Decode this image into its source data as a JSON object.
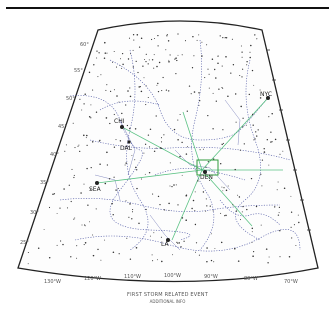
{
  "map": {
    "edge_labels_left": [
      "60°",
      "55°",
      "50°",
      "45°",
      "40°",
      "35°",
      "30°",
      "25°"
    ],
    "edge_labels_bottom": [
      "130°W",
      "120°W",
      "110°W",
      "100°W",
      "90°W",
      "80°W",
      "70°W"
    ],
    "places": [
      {
        "key": "NYC",
        "label": "NYC"
      },
      {
        "key": "CHI",
        "label": "CHI"
      },
      {
        "key": "DEN",
        "label": "DEN"
      },
      {
        "key": "LA",
        "label": "LA"
      },
      {
        "key": "SEA",
        "label": "SEA"
      },
      {
        "key": "DAL",
        "label": "DAL"
      }
    ],
    "colors": {
      "boundary": "#1f2a8c",
      "route": "#3fb86f",
      "highlight_box": "#2e9c3c",
      "graticule": "#333333"
    }
  },
  "caption": {
    "line1": "FIRST STORM RELATED EVENT",
    "line2": "ADDITIONAL INFO"
  }
}
